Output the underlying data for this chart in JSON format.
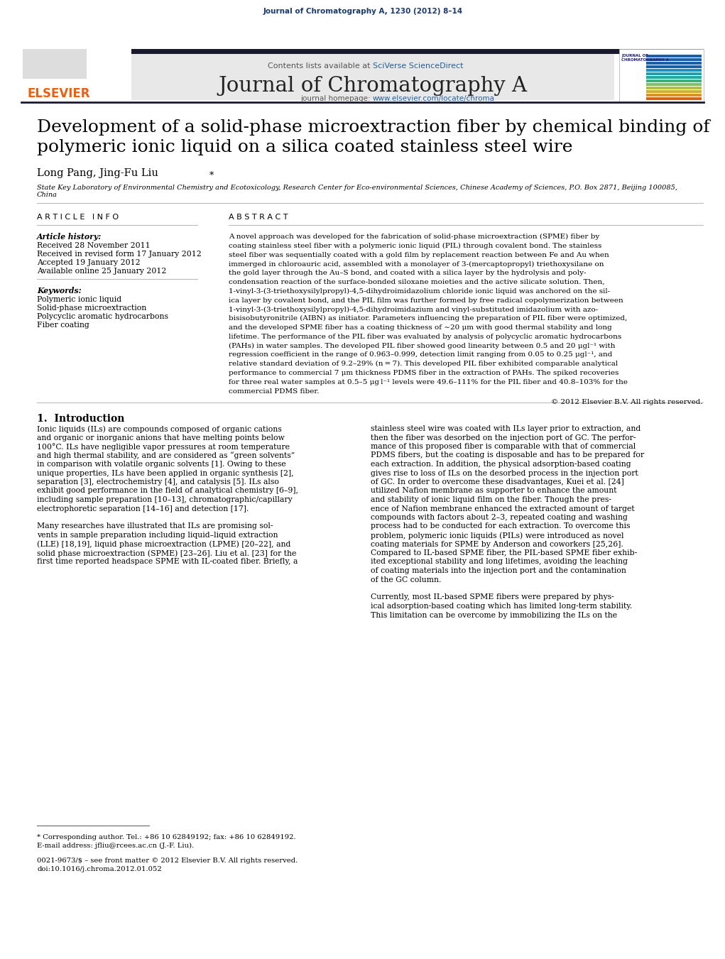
{
  "journal_ref": "Journal of Chromatography A, 1230 (2012) 8–14",
  "journal_name": "Journal of Chromatography A",
  "contents_line": "Contents lists available at SciVerse ScienceDirect",
  "homepage_line": "journal homepage: www.elsevier.com/locate/chroma",
  "title_line1": "Development of a solid-phase microextraction fiber by chemical binding of",
  "title_line2": "polymeric ionic liquid on a silica coated stainless steel wire",
  "authors": "Long Pang, Jing-Fu Liu*",
  "affiliation": "State Key Laboratory of Environmental Chemistry and Ecotoxicology, Research Center for Eco-environmental Sciences, Chinese Academy of Sciences, P.O. Box 2871, Beijing 100085,\nChina",
  "article_info_header": "A R T I C L E   I N F O",
  "abstract_header": "A B S T R A C T",
  "article_history_label": "Article history:",
  "received": "Received 28 November 2011",
  "received_revised": "Received in revised form 17 January 2012",
  "accepted": "Accepted 19 January 2012",
  "available": "Available online 25 January 2012",
  "keywords_label": "Keywords:",
  "keyword1": "Polymeric ionic liquid",
  "keyword2": "Solid-phase microextraction",
  "keyword3": "Polycyclic aromatic hydrocarbons",
  "keyword4": "Fiber coating",
  "copyright": "© 2012 Elsevier B.V. All rights reserved.",
  "intro_header": "1.  Introduction",
  "footnote1": "* Corresponding author. Tel.: +86 10 62849192; fax: +86 10 62849192.",
  "footnote2": "E-mail address: jfliu@rcees.ac.cn (J.-F. Liu).",
  "issn_line": "0021-9673/$ – see front matter © 2012 Elsevier B.V. All rights reserved.",
  "doi_line": "doi:10.1016/j.chroma.2012.01.052",
  "bg_color": "#ffffff",
  "header_bar_color": "#1a1a2e",
  "journal_ref_color": "#1a3a6b",
  "link_color": "#2060a0",
  "header_bg_color": "#e8e8e8",
  "title_color": "#000000",
  "text_color": "#000000",
  "elsevier_color": "#e86010",
  "abstract_lines": [
    "A novel approach was developed for the fabrication of solid-phase microextraction (SPME) fiber by",
    "coating stainless steel fiber with a polymeric ionic liquid (PIL) through covalent bond. The stainless",
    "steel fiber was sequentially coated with a gold film by replacement reaction between Fe and Au when",
    "immerged in chloroauric acid, assembled with a monolayer of 3-(mercaptopropyl) triethoxysilane on",
    "the gold layer through the Au–S bond, and coated with a silica layer by the hydrolysis and poly-",
    "condensation reaction of the surface-bonded siloxane moieties and the active silicate solution. Then,",
    "1-vinyl-3-(3-triethoxysilylpropyl)-4,5-dihydroimidazolium chloride ionic liquid was anchored on the sil-",
    "ica layer by covalent bond, and the PIL film was further formed by free radical copolymerization between",
    "1-vinyl-3-(3-triethoxysilylpropyl)-4,5-dihydroimidazium and vinyl-substituted imidazolium with azo-",
    "bisisobutyronitrile (AIBN) as initiator. Parameters influencing the preparation of PIL fiber were optimized,",
    "and the developed SPME fiber has a coating thickness of ∼20 μm with good thermal stability and long",
    "lifetime. The performance of the PIL fiber was evaluated by analysis of polycyclic aromatic hydrocarbons",
    "(PAHs) in water samples. The developed PIL fiber showed good linearity between 0.5 and 20 μgl⁻¹ with",
    "regression coefficient in the range of 0.963–0.999, detection limit ranging from 0.05 to 0.25 μgl⁻¹, and",
    "relative standard deviation of 9.2–29% (n = 7). This developed PIL fiber exhibited comparable analytical",
    "performance to commercial 7 μm thickness PDMS fiber in the extraction of PAHs. The spiked recoveries",
    "for three real water samples at 0.5–5 μg l⁻¹ levels were 49.6–111% for the PIL fiber and 40.8–103% for the",
    "commercial PDMS fiber."
  ],
  "intro_col1_lines": [
    "Ionic liquids (ILs) are compounds composed of organic cations",
    "and organic or inorganic anions that have melting points below",
    "100°C. ILs have negligible vapor pressures at room temperature",
    "and high thermal stability, and are considered as “green solvents”",
    "in comparison with volatile organic solvents [1]. Owing to these",
    "unique properties, ILs have been applied in organic synthesis [2],",
    "separation [3], electrochemistry [4], and catalysis [5]. ILs also",
    "exhibit good performance in the field of analytical chemistry [6–9],",
    "including sample preparation [10–13], chromatographic/capillary",
    "electrophoretic separation [14–16] and detection [17].",
    "",
    "Many researches have illustrated that ILs are promising sol-",
    "vents in sample preparation including liquid–liquid extraction",
    "(LLE) [18,19], liquid phase microextraction (LPME) [20–22], and",
    "solid phase microextraction (SPME) [23–26]. Liu et al. [23] for the",
    "first time reported headspace SPME with IL-coated fiber. Briefly, a"
  ],
  "intro_col2_lines": [
    "stainless steel wire was coated with ILs layer prior to extraction, and",
    "then the fiber was desorbed on the injection port of GC. The perfor-",
    "mance of this proposed fiber is comparable with that of commercial",
    "PDMS fibers, but the coating is disposable and has to be prepared for",
    "each extraction. In addition, the physical adsorption-based coating",
    "gives rise to loss of ILs on the desorbed process in the injection port",
    "of GC. In order to overcome these disadvantages, Kuei et al. [24]",
    "utilized Nafion membrane as supporter to enhance the amount",
    "and stability of ionic liquid film on the fiber. Though the pres-",
    "ence of Nafion membrane enhanced the extracted amount of target",
    "compounds with factors about 2–3, repeated coating and washing",
    "process had to be conducted for each extraction. To overcome this",
    "problem, polymeric ionic liquids (PILs) were introduced as novel",
    "coating materials for SPME by Anderson and coworkers [25,26].",
    "Compared to IL-based SPME fiber, the PIL-based SPME fiber exhib-",
    "ited exceptional stability and long lifetimes, avoiding the leaching",
    "of coating materials into the injection port and the contamination",
    "of the GC column.",
    "",
    "Currently, most IL-based SPME fibers were prepared by phys-",
    "ical adsorption-based coating which has limited long-term stability.",
    "This limitation can be overcome by immobilizing the ILs on the"
  ],
  "stripe_colors": [
    "#1a5fa8",
    "#1a5fa8",
    "#1a5fa8",
    "#1a5fa8",
    "#2090c0",
    "#20a0b0",
    "#20a8a0",
    "#40b080",
    "#80c060",
    "#b0c040",
    "#d0b030",
    "#e09020",
    "#e06010"
  ]
}
